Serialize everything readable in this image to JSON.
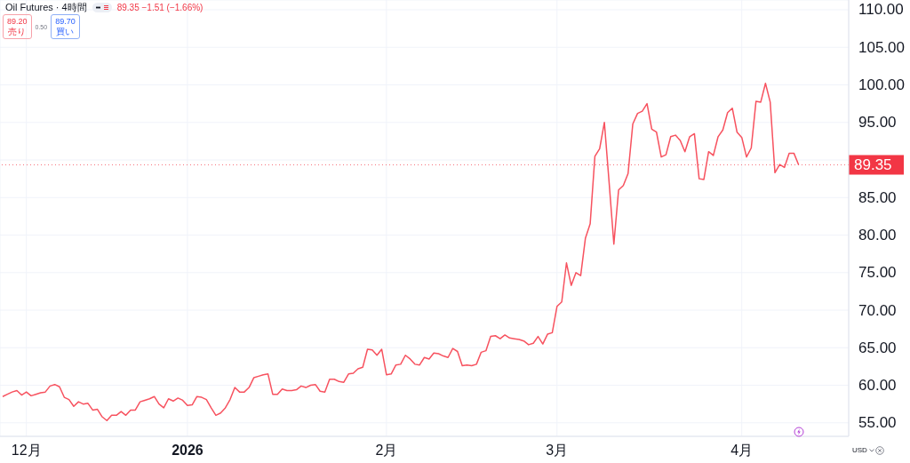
{
  "chart_data": {
    "type": "line",
    "title": "Oil Futures · 4時間",
    "subtitle": "89.35 −1.51 (−1.66%)",
    "categories": [
      null,
      null,
      null,
      null,
      null,
      "12月",
      null,
      null,
      null,
      null,
      null,
      null,
      null,
      null,
      null,
      null,
      null,
      null,
      null,
      null,
      null,
      null,
      null,
      null,
      null,
      null,
      null,
      null,
      null,
      null,
      null,
      null,
      null,
      null,
      null,
      null,
      null,
      null,
      null,
      "2026",
      null,
      null,
      null,
      null,
      null,
      null,
      null,
      null,
      null,
      null,
      null,
      null,
      null,
      null,
      null,
      null,
      null,
      null,
      null,
      null,
      null,
      null,
      null,
      null,
      null,
      null,
      null,
      null,
      null,
      null,
      null,
      null,
      null,
      null,
      null,
      null,
      null,
      null,
      null,
      null,
      null,
      "2月",
      null,
      null,
      null,
      null,
      null,
      null,
      null,
      null,
      null,
      null,
      null,
      null,
      null,
      null,
      null,
      null,
      null,
      null,
      null,
      null,
      null,
      null,
      null,
      null,
      null,
      null,
      null,
      null,
      null,
      null,
      null,
      null,
      null,
      null,
      null,
      "3月",
      null,
      null,
      null,
      null,
      null,
      null,
      null,
      null,
      null,
      null,
      null,
      null,
      null,
      null,
      null,
      null,
      null,
      null,
      null,
      null,
      null,
      null,
      null,
      null,
      null,
      null,
      null,
      null,
      null,
      null,
      null,
      null,
      null,
      null,
      null,
      null,
      null,
      null,
      "4月",
      null,
      null,
      null,
      null,
      null,
      null,
      null,
      null,
      null,
      null,
      null,
      null,
      null,
      null,
      null,
      null,
      null,
      null,
      null,
      null,
      null,
      null
    ],
    "series": [
      {
        "color": "#f7525f",
        "values": [
          58.5,
          58.8,
          59.1,
          59.3,
          58.7,
          59.1,
          58.6,
          58.8,
          59.0,
          59.1,
          59.9,
          60.1,
          59.8,
          58.4,
          58.1,
          57.2,
          57.8,
          57.5,
          57.6,
          56.7,
          56.8,
          55.8,
          55.3,
          56.0,
          56.0,
          56.5,
          56.0,
          56.7,
          56.7,
          57.8,
          58.0,
          58.2,
          58.5,
          57.5,
          57.0,
          58.2,
          57.9,
          58.3,
          58.0,
          57.3,
          57.4,
          58.5,
          58.4,
          58.1,
          57.0,
          56.0,
          56.3,
          57.0,
          58.1,
          59.7,
          59.1,
          59.1,
          59.7,
          61.0,
          61.2,
          61.4,
          61.5,
          58.8,
          58.8,
          59.5,
          59.3,
          59.3,
          59.4,
          59.9,
          59.7,
          60.0,
          60.1,
          59.2,
          59.1,
          60.8,
          60.8,
          60.5,
          60.4,
          61.5,
          61.6,
          62.2,
          62.4,
          64.8,
          64.7,
          64.0,
          64.8,
          61.4,
          61.5,
          62.7,
          62.8,
          64.0,
          63.5,
          62.8,
          62.7,
          63.7,
          63.5,
          64.3,
          64.2,
          63.9,
          63.7,
          64.9,
          64.5,
          62.6,
          62.7,
          62.6,
          62.8,
          64.4,
          64.6,
          66.5,
          66.6,
          66.2,
          66.7,
          66.3,
          66.2,
          66.1,
          65.9,
          65.4,
          65.6,
          66.5,
          65.5,
          66.8,
          67.0,
          70.5,
          71.1,
          76.3,
          73.3,
          75.0,
          74.6,
          79.6,
          81.5,
          90.5,
          91.5,
          95.0,
          87.0,
          78.8,
          86.0,
          86.6,
          88.2,
          94.8,
          96.2,
          96.5,
          97.5,
          94.1,
          93.7,
          90.4,
          90.7,
          93.1,
          93.3,
          92.6,
          91.1,
          93.1,
          93.5,
          87.5,
          87.4,
          91.1,
          90.6,
          93.1,
          94.0,
          96.3,
          96.9,
          93.7,
          93.0,
          90.4,
          91.6,
          97.8,
          97.7,
          100.2,
          97.7,
          88.3,
          89.4,
          89.0,
          90.9,
          90.9,
          89.35,
          null,
          null,
          null,
          null,
          null,
          null,
          null,
          null,
          null,
          null
        ]
      }
    ],
    "ylim": [
      53.2,
      111.3
    ],
    "yticks": [
      {
        "value": 55,
        "label": "55.00"
      },
      {
        "value": 60,
        "label": "60.00"
      },
      {
        "value": 65,
        "label": "65.00"
      },
      {
        "value": 70,
        "label": "70.00"
      },
      {
        "value": 75,
        "label": "75.00"
      },
      {
        "value": 80,
        "label": "80.00"
      },
      {
        "value": 85,
        "label": "85.00"
      },
      {
        "value": 90,
        "label": null
      },
      {
        "value": 95,
        "label": "95.00"
      },
      {
        "value": 100,
        "label": "100.00"
      },
      {
        "value": 105,
        "label": "105.00"
      },
      {
        "value": 110,
        "label": "110.00"
      }
    ],
    "grid": true,
    "ref_lines": [
      {
        "axis": "y",
        "value": 89.35,
        "label": "89.35",
        "color": "#f23645",
        "line_style": "dotted"
      }
    ],
    "annotations": [
      "89.20",
      "売り",
      "0.50",
      "89.70",
      "買い",
      "USD"
    ]
  }
}
